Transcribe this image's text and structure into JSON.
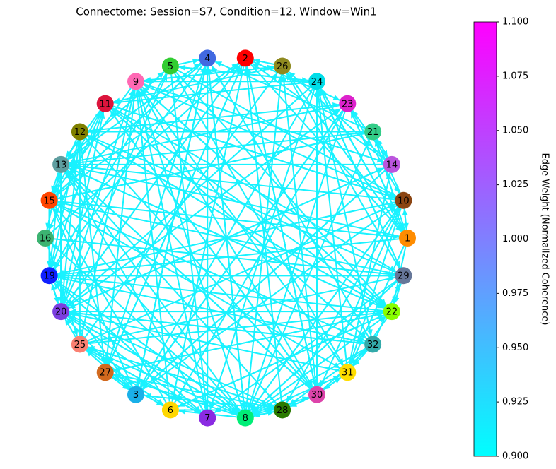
{
  "chart_data": {
    "type": "network",
    "title": "Connectome: Session=S7, Condition=12, Window=Win1",
    "edge_color": "#19f2ff",
    "nodes": [
      {
        "label": "2",
        "color": "#ff0000"
      },
      {
        "label": "26",
        "color": "#8f8a20"
      },
      {
        "label": "24",
        "color": "#00dde8"
      },
      {
        "label": "23",
        "color": "#dd22cc"
      },
      {
        "label": "21",
        "color": "#33cc88"
      },
      {
        "label": "14",
        "color": "#bb55dd"
      },
      {
        "label": "10",
        "color": "#8b4513"
      },
      {
        "label": "1",
        "color": "#ff8c00"
      },
      {
        "label": "29",
        "color": "#667799"
      },
      {
        "label": "22",
        "color": "#88ff00"
      },
      {
        "label": "32",
        "color": "#33aaaa"
      },
      {
        "label": "31",
        "color": "#ffdd00"
      },
      {
        "label": "30",
        "color": "#dd44aa"
      },
      {
        "label": "28",
        "color": "#2a7a00"
      },
      {
        "label": "8",
        "color": "#00ee77"
      },
      {
        "label": "7",
        "color": "#8a2be2"
      },
      {
        "label": "6",
        "color": "#ffd700"
      },
      {
        "label": "3",
        "color": "#1ab0e8"
      },
      {
        "label": "27",
        "color": "#d2691e"
      },
      {
        "label": "25",
        "color": "#fa8072"
      },
      {
        "label": "20",
        "color": "#7b3fe0"
      },
      {
        "label": "19",
        "color": "#1020ff"
      },
      {
        "label": "16",
        "color": "#3cb371"
      },
      {
        "label": "15",
        "color": "#ff4500"
      },
      {
        "label": "13",
        "color": "#5f9ea0"
      },
      {
        "label": "12",
        "color": "#808000"
      },
      {
        "label": "11",
        "color": "#dc143c"
      },
      {
        "label": "9",
        "color": "#ff69b4"
      },
      {
        "label": "5",
        "color": "#32cd32"
      },
      {
        "label": "4",
        "color": "#4169e1"
      }
    ],
    "colorbar": {
      "label": "Edge Weight (Normalized Coherence)",
      "colors": [
        "#00ffff",
        "#ff00ff"
      ],
      "ylim": [
        0.9,
        1.1
      ],
      "yticks": [
        {
          "value": 0.9,
          "label": "0.900"
        },
        {
          "value": 0.925,
          "label": "0.925"
        },
        {
          "value": 0.95,
          "label": "0.950"
        },
        {
          "value": 0.975,
          "label": "0.975"
        },
        {
          "value": 1.0,
          "label": "1.000"
        },
        {
          "value": 1.025,
          "label": "1.025"
        },
        {
          "value": 1.05,
          "label": "1.050"
        },
        {
          "value": 1.075,
          "label": "1.075"
        },
        {
          "value": 1.1,
          "label": "1.100"
        }
      ]
    }
  }
}
